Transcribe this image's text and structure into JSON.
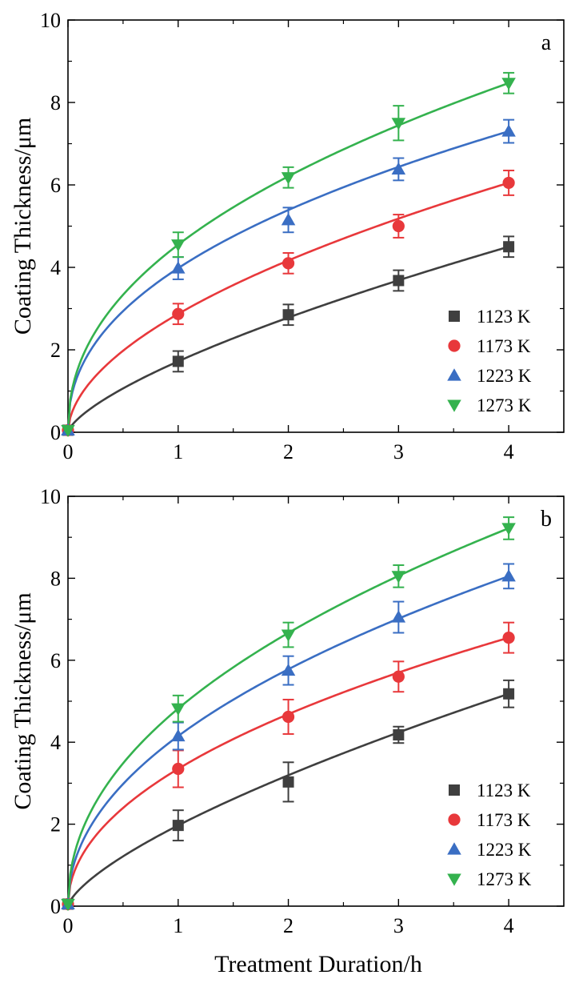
{
  "figure": {
    "xlabel": "Treatment Duration/h"
  },
  "chart_data": [
    {
      "type": "scatter",
      "panel_letter": "a",
      "xlabel": "",
      "ylabel": "Coating Thickness/μm",
      "xlim": [
        0,
        4.5
      ],
      "ylim": [
        0,
        10
      ],
      "x_ticks": [
        "0",
        "1",
        "2",
        "3",
        "4"
      ],
      "y_ticks": [
        "0",
        "2",
        "4",
        "6",
        "8",
        "10"
      ],
      "grid": false,
      "legend_position": "bottom-right",
      "fit_curves": true,
      "series": [
        {
          "name": "1123 K",
          "color": "#3f3f3f",
          "marker": "square",
          "x": [
            0,
            1,
            2,
            3,
            4
          ],
          "y": [
            0.05,
            1.72,
            2.85,
            3.68,
            4.5
          ],
          "yerr": [
            0,
            0.25,
            0.25,
            0.25,
            0.25
          ]
        },
        {
          "name": "1173 K",
          "color": "#e8383b",
          "marker": "circle",
          "x": [
            0,
            1,
            2,
            3,
            4
          ],
          "y": [
            0.05,
            2.87,
            4.1,
            5.0,
            6.05
          ],
          "yerr": [
            0,
            0.25,
            0.25,
            0.28,
            0.3
          ]
        },
        {
          "name": "1223 K",
          "color": "#3a6ec3",
          "marker": "triangle-up",
          "x": [
            0,
            1,
            2,
            3,
            4
          ],
          "y": [
            0.05,
            3.98,
            5.15,
            6.38,
            7.3
          ],
          "yerr": [
            0,
            0.27,
            0.3,
            0.27,
            0.28
          ]
        },
        {
          "name": "1273 K",
          "color": "#34b24e",
          "marker": "triangle-down",
          "x": [
            0,
            1,
            2,
            3,
            4
          ],
          "y": [
            0.05,
            4.55,
            6.18,
            7.5,
            8.47
          ],
          "yerr": [
            0,
            0.3,
            0.25,
            0.42,
            0.25
          ]
        }
      ]
    },
    {
      "type": "scatter",
      "panel_letter": "b",
      "xlabel": "Treatment Duration/h",
      "ylabel": "Coating Thickness/μm",
      "xlim": [
        0,
        4.5
      ],
      "ylim": [
        0,
        10
      ],
      "x_ticks": [
        "0",
        "1",
        "2",
        "3",
        "4"
      ],
      "y_ticks": [
        "0",
        "2",
        "4",
        "6",
        "8",
        "10"
      ],
      "grid": false,
      "legend_position": "bottom-right",
      "fit_curves": true,
      "series": [
        {
          "name": "1123 K",
          "color": "#3f3f3f",
          "marker": "square",
          "x": [
            0,
            1,
            2,
            3,
            4
          ],
          "y": [
            0.05,
            1.97,
            3.03,
            4.18,
            5.18
          ],
          "yerr": [
            0,
            0.37,
            0.48,
            0.2,
            0.33
          ]
        },
        {
          "name": "1173 K",
          "color": "#e8383b",
          "marker": "circle",
          "x": [
            0,
            1,
            2,
            3,
            4
          ],
          "y": [
            0.05,
            3.35,
            4.62,
            5.6,
            6.55
          ],
          "yerr": [
            0,
            0.45,
            0.42,
            0.37,
            0.37
          ]
        },
        {
          "name": "1223 K",
          "color": "#3a6ec3",
          "marker": "triangle-up",
          "x": [
            0,
            1,
            2,
            3,
            4
          ],
          "y": [
            0.05,
            4.15,
            5.75,
            7.05,
            8.05
          ],
          "yerr": [
            0,
            0.33,
            0.35,
            0.38,
            0.3
          ]
        },
        {
          "name": "1273 K",
          "color": "#34b24e",
          "marker": "triangle-down",
          "x": [
            0,
            1,
            2,
            3,
            4
          ],
          "y": [
            0.05,
            4.82,
            6.62,
            8.05,
            9.22
          ],
          "yerr": [
            0,
            0.32,
            0.3,
            0.27,
            0.27
          ]
        }
      ]
    }
  ]
}
